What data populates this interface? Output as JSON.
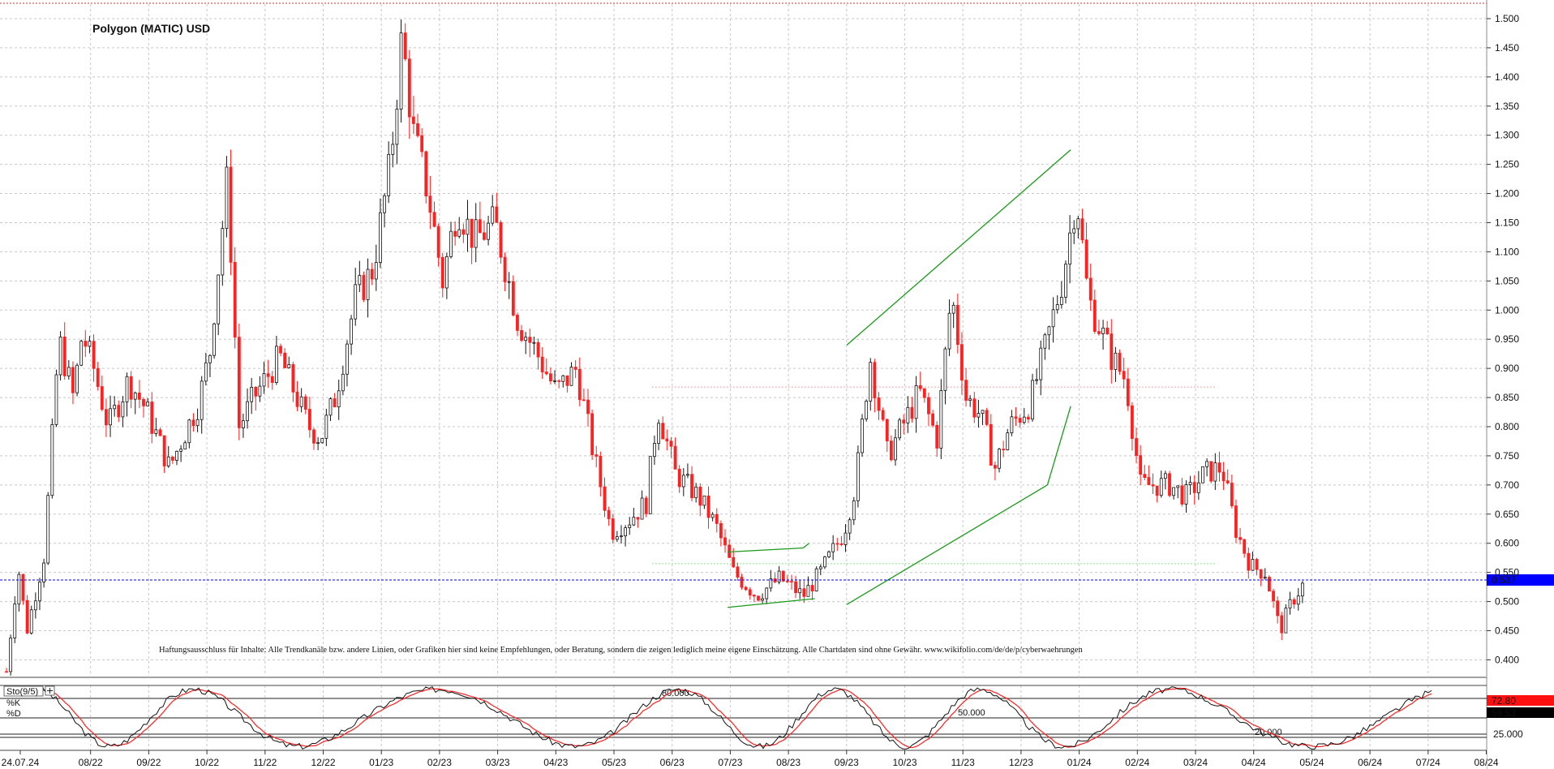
{
  "chart_data": {
    "type": "candlestick",
    "title": "Polygon (MATIC) USD",
    "y_ticks": [
      "1.500",
      "1.450",
      "1.400",
      "1.350",
      "1.300",
      "1.250",
      "1.200",
      "1.150",
      "1.100",
      "1.050",
      "1.000",
      "0.950",
      "0.900",
      "0.850",
      "0.800",
      "0.750",
      "0.700",
      "0.650",
      "0.600",
      "0.550",
      "0.500",
      "0.450",
      "0.400"
    ],
    "ylim": [
      0.37,
      1.525
    ],
    "x_ticks": [
      "24.07.24",
      "08/22",
      "09/22",
      "10/22",
      "11/22",
      "12/22",
      "01/23",
      "02/23",
      "03/23",
      "04/23",
      "05/23",
      "06/23",
      "07/23",
      "08/23",
      "09/23",
      "10/23",
      "11/23",
      "12/23",
      "01/24",
      "02/24",
      "03/24",
      "04/24",
      "05/24",
      "06/24",
      "07/24",
      "08/24"
    ],
    "last_price": {
      "value": 0.537,
      "label": "0.537",
      "color": "#0000ff"
    },
    "price_path": [
      {
        "m": 0.0,
        "v": 0.38
      },
      {
        "m": 0.4,
        "v": 0.56
      },
      {
        "m": 0.7,
        "v": 0.45
      },
      {
        "m": 1.3,
        "v": 0.58
      },
      {
        "m": 1.8,
        "v": 0.95
      },
      {
        "m": 2.3,
        "v": 0.85
      },
      {
        "m": 2.6,
        "v": 0.96
      },
      {
        "m": 3.0,
        "v": 0.9
      },
      {
        "m": 3.5,
        "v": 0.8
      },
      {
        "m": 4.2,
        "v": 0.88
      },
      {
        "m": 4.8,
        "v": 0.83
      },
      {
        "m": 5.6,
        "v": 0.73
      },
      {
        "m": 6.6,
        "v": 0.84
      },
      {
        "m": 7.0,
        "v": 0.93
      },
      {
        "m": 7.6,
        "v": 1.23
      },
      {
        "m": 8.0,
        "v": 0.8
      },
      {
        "m": 8.5,
        "v": 0.85
      },
      {
        "m": 9.4,
        "v": 0.92
      },
      {
        "m": 10.4,
        "v": 0.8
      },
      {
        "m": 10.8,
        "v": 0.78
      },
      {
        "m": 11.3,
        "v": 0.85
      },
      {
        "m": 12.0,
        "v": 1.02
      },
      {
        "m": 12.6,
        "v": 1.07
      },
      {
        "m": 13.2,
        "v": 1.25
      },
      {
        "m": 13.6,
        "v": 1.47
      },
      {
        "m": 14.0,
        "v": 1.3
      },
      {
        "m": 14.5,
        "v": 1.2
      },
      {
        "m": 15.0,
        "v": 1.05
      },
      {
        "m": 15.5,
        "v": 1.18
      },
      {
        "m": 16.1,
        "v": 1.12
      },
      {
        "m": 16.8,
        "v": 1.15
      },
      {
        "m": 17.6,
        "v": 0.98
      },
      {
        "m": 18.2,
        "v": 0.93
      },
      {
        "m": 18.9,
        "v": 0.86
      },
      {
        "m": 19.6,
        "v": 0.9
      },
      {
        "m": 20.2,
        "v": 0.75
      },
      {
        "m": 20.8,
        "v": 0.62
      },
      {
        "m": 21.4,
        "v": 0.64
      },
      {
        "m": 22.0,
        "v": 0.67
      },
      {
        "m": 22.4,
        "v": 0.83
      },
      {
        "m": 23.0,
        "v": 0.72
      },
      {
        "m": 23.8,
        "v": 0.68
      },
      {
        "m": 24.4,
        "v": 0.63
      },
      {
        "m": 25.0,
        "v": 0.55
      },
      {
        "m": 25.8,
        "v": 0.51
      },
      {
        "m": 26.6,
        "v": 0.54
      },
      {
        "m": 27.4,
        "v": 0.51
      },
      {
        "m": 28.0,
        "v": 0.55
      },
      {
        "m": 28.8,
        "v": 0.62
      },
      {
        "m": 29.2,
        "v": 0.7
      },
      {
        "m": 29.7,
        "v": 0.92
      },
      {
        "m": 30.3,
        "v": 0.75
      },
      {
        "m": 30.8,
        "v": 0.8
      },
      {
        "m": 31.4,
        "v": 0.86
      },
      {
        "m": 32.0,
        "v": 0.78
      },
      {
        "m": 32.5,
        "v": 1.03
      },
      {
        "m": 33.0,
        "v": 0.85
      },
      {
        "m": 33.5,
        "v": 0.82
      },
      {
        "m": 34.0,
        "v": 0.73
      },
      {
        "m": 34.5,
        "v": 0.8
      },
      {
        "m": 35.2,
        "v": 0.84
      },
      {
        "m": 35.8,
        "v": 0.95
      },
      {
        "m": 36.3,
        "v": 1.05
      },
      {
        "m": 36.8,
        "v": 1.2
      },
      {
        "m": 37.2,
        "v": 1.02
      },
      {
        "m": 37.6,
        "v": 0.97
      },
      {
        "m": 38.0,
        "v": 0.92
      },
      {
        "m": 38.5,
        "v": 0.88
      },
      {
        "m": 39.0,
        "v": 0.7
      },
      {
        "m": 39.5,
        "v": 0.7
      },
      {
        "m": 40.0,
        "v": 0.7
      },
      {
        "m": 40.6,
        "v": 0.68
      },
      {
        "m": 41.2,
        "v": 0.72
      },
      {
        "m": 41.8,
        "v": 0.73
      },
      {
        "m": 42.3,
        "v": 0.62
      },
      {
        "m": 42.8,
        "v": 0.56
      },
      {
        "m": 43.3,
        "v": 0.55
      },
      {
        "m": 43.8,
        "v": 0.45
      },
      {
        "m": 44.2,
        "v": 0.5
      },
      {
        "m": 44.7,
        "v": 0.537
      }
    ],
    "annotation_lines": [
      {
        "p1": [
          28.9,
          0.94
        ],
        "p2": [
          36.6,
          1.275
        ],
        "color": "#1a9a1a"
      },
      {
        "p1": [
          35.8,
          0.7
        ],
        "p2": [
          36.6,
          0.835
        ],
        "color": "#1a9a1a"
      },
      {
        "p1": [
          28.9,
          0.495
        ],
        "p2": [
          35.8,
          0.7
        ],
        "color": "#1a9a1a"
      },
      {
        "p1": [
          24.8,
          0.585
        ],
        "p2": [
          27.4,
          0.592
        ],
        "color": "#1a9a1a"
      },
      {
        "p1": [
          27.4,
          0.592
        ],
        "p2": [
          27.6,
          0.6
        ],
        "color": "#1a9a1a"
      },
      {
        "p1": [
          24.8,
          0.49
        ],
        "p2": [
          27.8,
          0.505
        ],
        "color": "#1a9a1a"
      }
    ],
    "horizontal_levels": [
      {
        "value": 0.868,
        "color": "#e8a0a0"
      },
      {
        "value": 0.565,
        "color": "#88dd88"
      }
    ],
    "disclaimer": "Haftungsausschluss für Inhalte: Alle Trendkanäle bzw. andere Linien, oder Grafiken hier sind keine Empfehlungen, oder Beratung, sondern die zeigen lediglich meine eigene Einschätzung. Alle Chartdaten sind ohne Gewähr.  www.wikifolio.com/de/de/p/cyberwaehrungen",
    "up_color": "#111111",
    "down_color": "#ff2020",
    "stochastic": {
      "label": "Sto(9/5)",
      "k_label": "%K",
      "d_label": "%D",
      "k_color": "#111111",
      "d_color": "#ff2020",
      "k_value": "72.80",
      "d_value": "59.53",
      "levels": [
        {
          "value": "80.000",
          "y": 80
        },
        {
          "value": "50.000",
          "y": 50
        },
        {
          "value": "25.000",
          "y": 25
        },
        {
          "value": "20.000",
          "y": 20
        }
      ],
      "ylim": [
        0,
        100
      ]
    }
  }
}
